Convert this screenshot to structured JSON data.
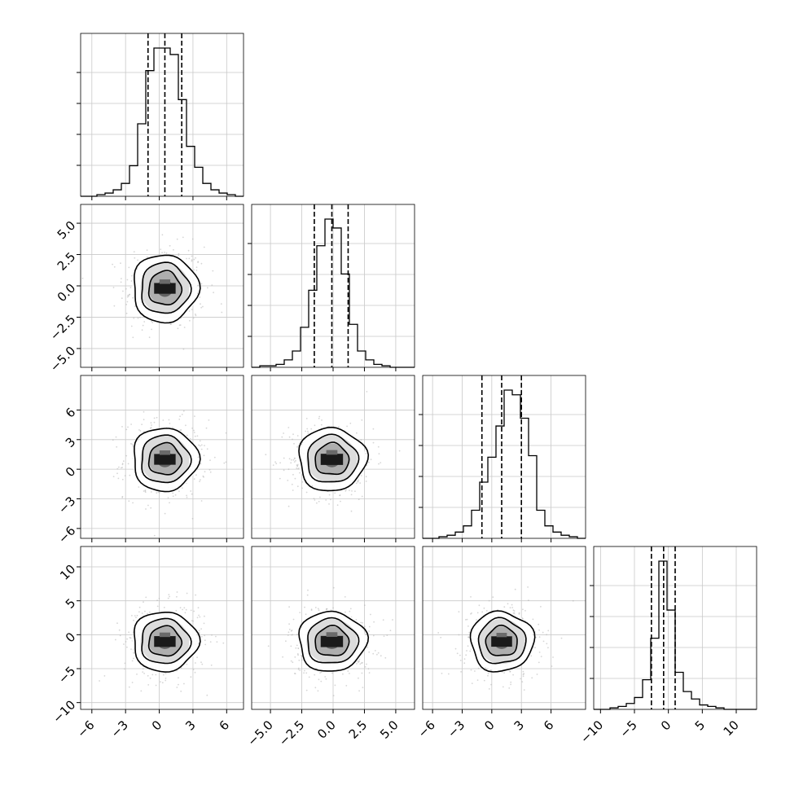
{
  "chart_data": {
    "type": "corner",
    "grid": true,
    "params": [
      {
        "range": [
          -7.0,
          7.5
        ],
        "ticks": [
          "−6",
          "−3",
          "0",
          "3",
          "6"
        ],
        "tick_values": [
          -6,
          -3,
          0,
          3,
          6
        ],
        "quantiles": [
          -1.0,
          0.5,
          2.0
        ],
        "hist": {
          "edges_start": -7.0,
          "edges_step": 0.725,
          "counts": [
            0,
            0,
            1,
            2,
            4,
            8,
            19,
            45,
            78,
            92,
            92,
            88,
            60,
            31,
            18,
            8,
            4,
            2,
            1,
            0
          ]
        }
      },
      {
        "range": [
          -6.5,
          6.5
        ],
        "ticks": [
          "−5.0",
          "−2.5",
          "0.0",
          "2.5",
          "5.0"
        ],
        "tick_values": [
          -5,
          -2.5,
          0,
          2.5,
          5
        ],
        "quantiles": [
          -1.5,
          -0.1,
          1.2
        ],
        "hist": {
          "edges_start": -6.5,
          "edges_step": 0.65,
          "counts": [
            0,
            1,
            1,
            2,
            5,
            11,
            27,
            52,
            82,
            100,
            94,
            63,
            29,
            11,
            5,
            2,
            1,
            0,
            0,
            0
          ]
        }
      },
      {
        "range": [
          -7.0,
          9.5
        ],
        "ticks": [
          "−6",
          "−3",
          "0",
          "3",
          "6"
        ],
        "tick_values": [
          -6,
          -3,
          0,
          3,
          6
        ],
        "quantiles": [
          -1.0,
          1.0,
          3.0
        ],
        "hist": {
          "edges_start": -7.0,
          "edges_step": 0.825,
          "counts": [
            0,
            0,
            1,
            2,
            4,
            8,
            18,
            36,
            52,
            72,
            95,
            92,
            77,
            53,
            18,
            8,
            4,
            2,
            1,
            0
          ]
        }
      },
      {
        "range": [
          -11.0,
          13.0
        ],
        "ticks": [
          "−10",
          "−5",
          "0",
          "5",
          "10"
        ],
        "tick_values": [
          -10,
          -5,
          0,
          5,
          10
        ],
        "quantiles": [
          -2.5,
          -0.7,
          1.0
        ],
        "hist": {
          "edges_start": -11.0,
          "edges_step": 1.2,
          "counts": [
            0,
            0,
            1,
            2,
            4,
            8,
            20,
            48,
            100,
            67,
            25,
            12,
            7,
            3,
            2,
            1,
            0,
            0,
            0,
            0
          ]
        }
      }
    ],
    "pairs": [
      {
        "row": 1,
        "col": 0,
        "mean_x": 0.5,
        "mean_y": -0.2,
        "sd_x": 1.45,
        "sd_y": 1.35
      },
      {
        "row": 2,
        "col": 0,
        "mean_x": 0.5,
        "mean_y": 1.0,
        "sd_x": 1.45,
        "sd_y": 1.6
      },
      {
        "row": 2,
        "col": 1,
        "mean_x": -0.1,
        "mean_y": 1.0,
        "sd_x": 1.35,
        "sd_y": 1.6
      },
      {
        "row": 3,
        "col": 0,
        "mean_x": 0.5,
        "mean_y": -1.0,
        "sd_x": 1.45,
        "sd_y": 2.2
      },
      {
        "row": 3,
        "col": 1,
        "mean_x": -0.1,
        "mean_y": -1.0,
        "sd_x": 1.35,
        "sd_y": 2.2
      },
      {
        "row": 3,
        "col": 2,
        "mean_x": 1.0,
        "mean_y": -1.0,
        "sd_x": 1.6,
        "sd_y": 2.2
      }
    ],
    "contour_levels_sigma": [
      0.5,
      1.0,
      1.5,
      2.0
    ],
    "colors": {
      "line": "#000000",
      "points": "#b4b4b4",
      "grid": "#c8c8c8",
      "density": "#000000"
    }
  }
}
